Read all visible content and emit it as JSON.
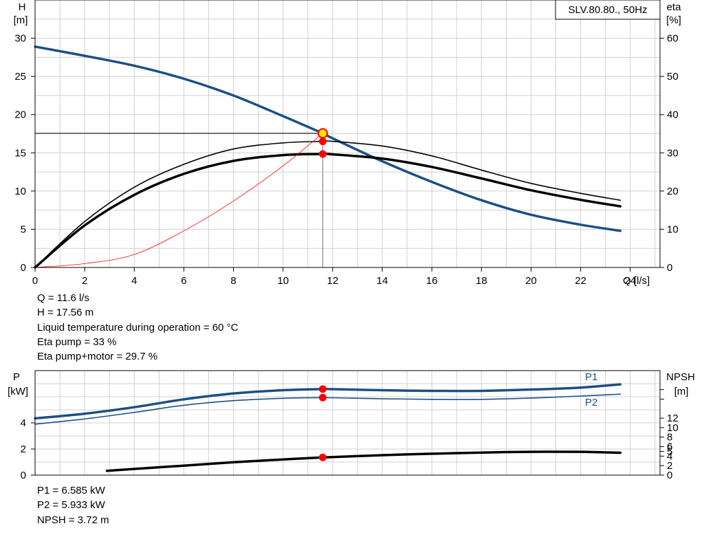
{
  "legend": "SLV.80.80., 50Hz",
  "info_top": [
    "Q = 11.6 l/s",
    "H = 17.56 m",
    "Liquid temperature during operation = 60 °C",
    "Eta pump = 33 %",
    "Eta pump+motor = 29.7 %"
  ],
  "info_bottom": [
    "P1 = 6.585 kW",
    "P2 = 5.933 kW",
    "NPSH = 3.72 m"
  ],
  "chart_data": [
    {
      "type": "line",
      "axes": {
        "x": {
          "label": "Q [l/s]",
          "range": [
            0,
            25.2
          ],
          "ticks": [
            0,
            2,
            4,
            6,
            8,
            10,
            12,
            14,
            16,
            18,
            20,
            22,
            24
          ]
        },
        "y_left": {
          "label": [
            "H",
            "[m]"
          ],
          "range": [
            0,
            35
          ],
          "ticks": [
            0,
            5,
            10,
            15,
            20,
            25,
            30
          ]
        },
        "y_right": {
          "label": [
            "eta",
            "[%]"
          ],
          "range": [
            0,
            70
          ],
          "ticks": [
            0,
            10,
            20,
            30,
            40,
            50,
            60
          ]
        }
      },
      "grid": true,
      "legend": "SLV.80.80., 50Hz",
      "series": [
        {
          "axis": "left",
          "color": "#1b4f86",
          "width": 3.5,
          "x": [
            0,
            2,
            4,
            6,
            8,
            10,
            11.6,
            12,
            14,
            16,
            18,
            20,
            22,
            23.6
          ],
          "y": [
            28.9,
            27.7,
            26.4,
            24.7,
            22.5,
            19.8,
            17.56,
            16.9,
            13.9,
            11.2,
            8.8,
            6.9,
            5.6,
            4.8
          ]
        },
        {
          "axis": "right",
          "color": "#000000",
          "width": 1.6,
          "x": [
            0,
            2,
            4,
            6,
            8,
            10,
            11.6,
            12,
            14,
            16,
            18,
            20,
            22,
            23.6
          ],
          "y": [
            0,
            12,
            21,
            27,
            31,
            32.6,
            33,
            33,
            31.8,
            29.2,
            25.5,
            22,
            19.4,
            17.6
          ]
        },
        {
          "axis": "right",
          "color": "#000000",
          "width": 3.5,
          "x": [
            0,
            2,
            4,
            6,
            8,
            10,
            11.6,
            12,
            14,
            16,
            18,
            20,
            22,
            23.6
          ],
          "y": [
            0,
            11,
            19,
            24.5,
            27.9,
            29.4,
            29.7,
            29.6,
            28.5,
            26.3,
            23.3,
            20.2,
            17.7,
            16
          ]
        },
        {
          "axis": "left",
          "color": "#ff0000",
          "width": 0.8,
          "x": [
            0,
            2,
            4,
            6,
            8,
            10,
            11.6
          ],
          "y": [
            0,
            0.5,
            1.7,
            4.8,
            8.7,
            13.3,
            17.56
          ]
        }
      ],
      "operating_point": {
        "q": 11.6,
        "h": 17.56,
        "eta_pump": 33,
        "eta_pump_motor": 29.7
      }
    },
    {
      "type": "line",
      "axes": {
        "x": {
          "range": [
            0,
            25.2
          ]
        },
        "y_left": {
          "label": [
            "P",
            "[kW]"
          ],
          "range": [
            0,
            8
          ],
          "ticks": [
            0,
            2,
            4
          ]
        },
        "y_right": {
          "label": [
            "NPSH",
            "[m]"
          ],
          "range": [
            0,
            22
          ],
          "ticks": [
            0,
            2,
            4,
            6,
            8,
            10,
            12
          ],
          "extra_ticks": [
            5,
            16,
            18
          ],
          "labeled_extra": [
            5,
            6
          ]
        }
      },
      "grid": true,
      "series": [
        {
          "name": "P1",
          "axis": "left",
          "color": "#1b4f86",
          "width": 3.5,
          "x": [
            0,
            2,
            4,
            6,
            8,
            10,
            11.6,
            12,
            14,
            16,
            18,
            20,
            22,
            23.6
          ],
          "y": [
            4.35,
            4.7,
            5.2,
            5.8,
            6.25,
            6.5,
            6.585,
            6.58,
            6.5,
            6.45,
            6.45,
            6.55,
            6.7,
            6.95
          ]
        },
        {
          "name": "P2",
          "axis": "left",
          "color": "#1b4f86",
          "width": 1.6,
          "x": [
            0,
            2,
            4,
            6,
            8,
            10,
            11.6,
            12,
            14,
            16,
            18,
            20,
            22,
            23.6
          ],
          "y": [
            3.9,
            4.3,
            4.8,
            5.35,
            5.7,
            5.88,
            5.933,
            5.92,
            5.85,
            5.8,
            5.8,
            5.9,
            6.05,
            6.2
          ]
        },
        {
          "name": "",
          "axis": "right",
          "color": "#000000",
          "width": 3.5,
          "x": [
            2.9,
            4,
            6,
            8,
            10,
            11.6,
            12,
            14,
            16,
            18,
            20,
            22,
            23.6
          ],
          "y": [
            0.9,
            1.3,
            2.0,
            2.7,
            3.3,
            3.72,
            3.8,
            4.2,
            4.5,
            4.75,
            4.9,
            4.9,
            4.7
          ]
        }
      ],
      "operating_point": {
        "q": 11.6,
        "p1": 6.585,
        "p2": 5.933,
        "npsh": 3.72
      }
    }
  ]
}
